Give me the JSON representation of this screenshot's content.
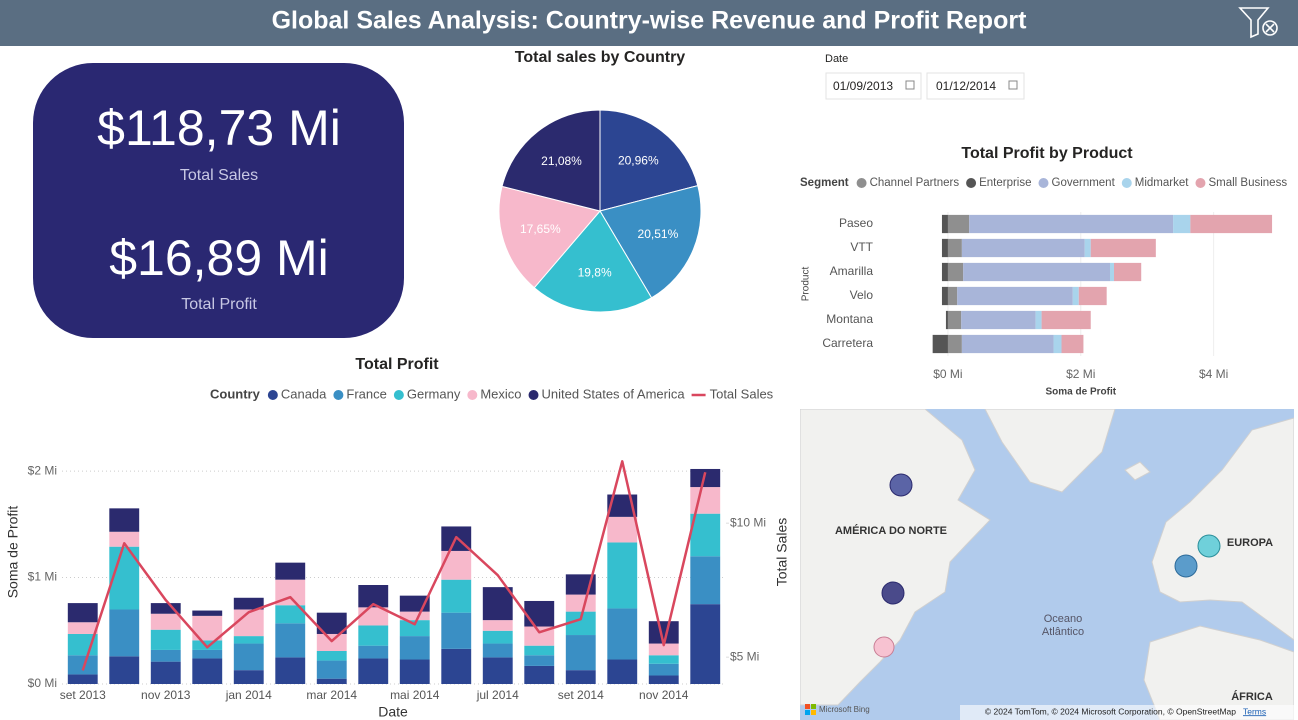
{
  "header": {
    "title": "Global Sales Analysis: Country-wise Revenue and Profit Report"
  },
  "kpis": [
    {
      "value": "$118,73 Mi",
      "label": "Total Sales"
    },
    {
      "value": "$16,89 Mi",
      "label": "Total Profit"
    }
  ],
  "date_filter": {
    "label": "Date",
    "start": "01/09/2013",
    "end": "01/12/2014"
  },
  "chart_data": [
    {
      "type": "pie",
      "title": "Total sales by Country",
      "values": [
        20.96,
        20.51,
        19.8,
        17.65,
        21.08
      ],
      "value_labels": [
        "20,96%",
        "20,51%",
        "19,8%",
        "17,65%",
        "21,08%"
      ],
      "colors": [
        "#2c4592",
        "#3a8fc4",
        "#35bfcf",
        "#f7b8cb",
        "#2b2a6e"
      ]
    },
    {
      "type": "bar",
      "orientation": "horizontal",
      "stacked": true,
      "title": "Total Profit by Product",
      "legend_title": "Segment",
      "categories": [
        "Paseo",
        "VTT",
        "Amarilla",
        "Velo",
        "Montana",
        "Carretera"
      ],
      "series": [
        {
          "name": "Channel Partners",
          "color": "#8f8f8f",
          "values": [
            0.32,
            0.21,
            0.23,
            0.14,
            0.2,
            0.21
          ]
        },
        {
          "name": "Enterprise",
          "color": "#555555",
          "values": [
            -0.09,
            -0.09,
            -0.09,
            -0.09,
            -0.03,
            -0.23
          ]
        },
        {
          "name": "Government",
          "color": "#a8b5d9",
          "values": [
            3.07,
            1.85,
            2.21,
            1.74,
            1.12,
            1.38
          ]
        },
        {
          "name": "Midmarket",
          "color": "#a9d4ec",
          "values": [
            0.26,
            0.09,
            0.06,
            0.09,
            0.09,
            0.12
          ]
        },
        {
          "name": "Small Business",
          "color": "#e3a4ae",
          "values": [
            1.23,
            0.98,
            0.41,
            0.42,
            0.74,
            0.33
          ]
        }
      ],
      "xlim": [
        -0.27,
        5.15
      ],
      "xticks": [
        {
          "value": 0,
          "label": "$0 Mi"
        },
        {
          "value": 2,
          "label": "$2 Mi"
        },
        {
          "value": 4,
          "label": "$4 Mi"
        }
      ],
      "xlabel": "Soma de Profit",
      "ylabel": "Product",
      "grid": true
    },
    {
      "type": "combo",
      "stacked": true,
      "title": "Total Profit",
      "legend_title": "Country",
      "categories": [
        "set 2013",
        null,
        "nov 2013",
        null,
        "jan 2014",
        null,
        "mar 2014",
        null,
        "mai 2014",
        null,
        "jul 2014",
        null,
        "set 2014",
        null,
        "nov 2014",
        null
      ],
      "series": [
        {
          "name": "Canada",
          "type": "bar",
          "color": "#2c4592",
          "values": [
            0.09,
            0.26,
            0.21,
            0.24,
            0.13,
            0.25,
            0.05,
            0.24,
            0.23,
            0.33,
            0.25,
            0.17,
            0.13,
            0.23,
            0.08,
            0.75
          ]
        },
        {
          "name": "France",
          "type": "bar",
          "color": "#3a8fc4",
          "values": [
            0.18,
            0.44,
            0.11,
            0.08,
            0.25,
            0.32,
            0.17,
            0.12,
            0.22,
            0.34,
            0.13,
            0.1,
            0.33,
            0.48,
            0.11,
            0.45
          ]
        },
        {
          "name": "Germany",
          "type": "bar",
          "color": "#35bfcf",
          "values": [
            0.2,
            0.59,
            0.19,
            0.09,
            0.07,
            0.17,
            0.09,
            0.19,
            0.15,
            0.31,
            0.12,
            0.09,
            0.22,
            0.62,
            0.08,
            0.4
          ]
        },
        {
          "name": "Mexico",
          "type": "bar",
          "color": "#f7b8cb",
          "values": [
            0.11,
            0.14,
            0.15,
            0.23,
            0.25,
            0.24,
            0.16,
            0.17,
            0.08,
            0.27,
            0.1,
            0.18,
            0.16,
            0.24,
            0.11,
            0.25
          ]
        },
        {
          "name": "United States of America",
          "type": "bar",
          "color": "#2b2a6e",
          "values": [
            0.18,
            0.22,
            0.1,
            0.05,
            0.11,
            0.16,
            0.2,
            0.21,
            0.15,
            0.23,
            0.31,
            0.24,
            0.19,
            0.21,
            0.21,
            0.17
          ]
        },
        {
          "name": "Total Sales",
          "type": "line",
          "axis": "y2",
          "color": "#d9475e",
          "values": [
            4.51,
            9.25,
            7.13,
            5.37,
            6.68,
            7.24,
            5.6,
            6.98,
            6.23,
            9.48,
            8.06,
            5.93,
            6.42,
            12.31,
            5.45,
            11.9
          ]
        }
      ],
      "ylim": [
        0,
        2.48
      ],
      "yticks": [
        {
          "value": 0,
          "label": "$0 Mi"
        },
        {
          "value": 1,
          "label": "$1 Mi"
        },
        {
          "value": 2,
          "label": "$2 Mi"
        }
      ],
      "y2lim": [
        4,
        13.85
      ],
      "y2ticks": [
        {
          "value": 5,
          "label": "$5 Mi"
        },
        {
          "value": 10,
          "label": "$10 Mi"
        }
      ],
      "xlabel": "Date",
      "ylabel": "Soma de Profit",
      "y2label": "Total Sales",
      "grid": true
    }
  ],
  "map": {
    "region_labels": [
      "AMÉRICA DO NORTE",
      "EUROPA",
      "ÁFRICA"
    ],
    "ocean_label": [
      "Oceano",
      "Atlântico"
    ],
    "attribution": "© 2024 TomTom, © 2024 Microsoft Corporation, © OpenStreetMap",
    "terms": "Terms",
    "brand": "Microsoft Bing"
  }
}
